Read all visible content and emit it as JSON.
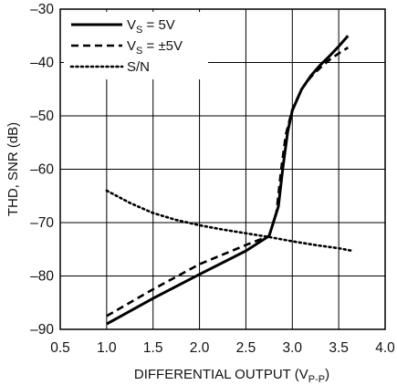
{
  "chart_data": {
    "type": "line",
    "xlabel": "DIFFERENTIAL OUTPUT (V",
    "xlabel_sub": "P-P",
    "xlabel_close": ")",
    "ylabel": "THD, SNR (dB)",
    "xlim": [
      0.5,
      4.0
    ],
    "ylim": [
      -90,
      -30
    ],
    "x_ticks": [
      0.5,
      1.0,
      1.5,
      2.0,
      2.5,
      3.0,
      3.5,
      4.0
    ],
    "x_tick_labels": [
      "0.5",
      "1.0",
      "1.5",
      "2.0",
      "2.5",
      "3.0",
      "3.5",
      "4.0"
    ],
    "y_ticks": [
      -90,
      -80,
      -70,
      -60,
      -50,
      -40,
      -30
    ],
    "y_tick_labels": [
      "–90",
      "–80",
      "–70",
      "–60",
      "–50",
      "–40",
      "–30"
    ],
    "grid": true,
    "legend_position": "top-left",
    "series": [
      {
        "name": "VS = 5V",
        "legend": {
          "main": "V",
          "sub": "S",
          "rest": " = 5V"
        },
        "style": "solid",
        "color": "#000000",
        "x": [
          1.0,
          1.5,
          2.0,
          2.5,
          2.75,
          2.85,
          2.9,
          2.95,
          3.0,
          3.1,
          3.2,
          3.3,
          3.4,
          3.5,
          3.6
        ],
        "y": [
          -89.0,
          -84.2,
          -79.7,
          -75.3,
          -72.5,
          -67.0,
          -59.5,
          -53.0,
          -49.0,
          -45.0,
          -42.5,
          -40.5,
          -38.8,
          -37.0,
          -35.0
        ]
      },
      {
        "name": "VS = ±5V",
        "legend": {
          "main": "V",
          "sub": "S",
          "rest": " = ±5V"
        },
        "style": "dashed",
        "color": "#000000",
        "x": [
          1.0,
          1.5,
          2.0,
          2.5,
          2.75,
          2.83,
          2.88,
          2.93,
          3.0,
          3.1,
          3.2,
          3.3,
          3.4,
          3.5,
          3.6
        ],
        "y": [
          -87.5,
          -82.5,
          -77.8,
          -74.2,
          -72.5,
          -68.0,
          -60.0,
          -53.5,
          -48.8,
          -45.0,
          -42.7,
          -41.0,
          -39.5,
          -38.3,
          -37.2
        ]
      },
      {
        "name": "S/N",
        "legend": {
          "main": "S/N",
          "sub": "",
          "rest": ""
        },
        "style": "dotted",
        "color": "#000000",
        "x": [
          1.0,
          1.25,
          1.5,
          1.75,
          2.0,
          2.25,
          2.5,
          2.75,
          3.0,
          3.25,
          3.5,
          3.65
        ],
        "y": [
          -64.0,
          -66.3,
          -68.2,
          -69.5,
          -70.5,
          -71.3,
          -72.0,
          -72.7,
          -73.5,
          -74.2,
          -74.8,
          -75.3
        ]
      }
    ]
  }
}
